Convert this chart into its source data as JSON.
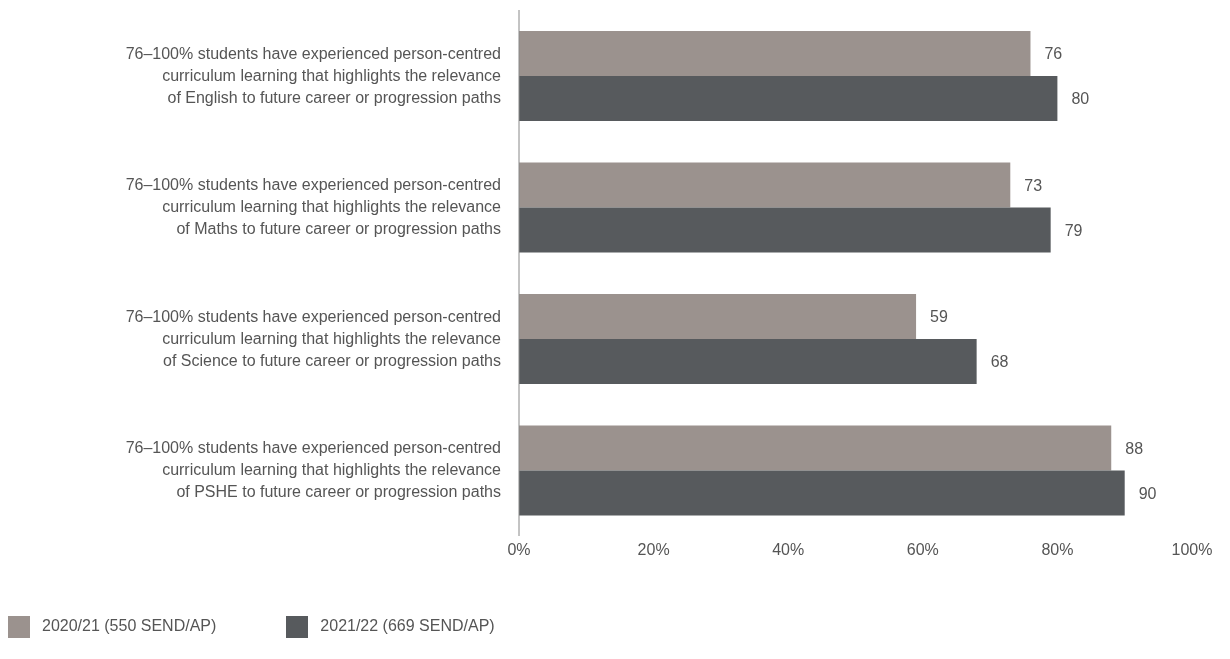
{
  "chart_data": {
    "type": "bar",
    "orientation": "horizontal",
    "categories": [
      "76–100% students have experienced person-centred\ncurriculum learning that highlights the relevance\nof English to future career or progression paths",
      "76–100% students have experienced person-centred\ncurriculum learning that highlights the relevance\nof Maths to future career or progression paths",
      "76–100% students have experienced person-centred\ncurriculum learning that highlights the relevance\nof Science to future career or progression paths",
      "76–100% students have experienced person-centred\ncurriculum learning that highlights the relevance\nof PSHE to future career or progression paths"
    ],
    "series": [
      {
        "name": "2020/21 (550 SEND/AP)",
        "color": "#9b928e",
        "values": [
          76,
          73,
          59,
          88
        ]
      },
      {
        "name": "2021/22 (669 SEND/AP)",
        "color": "#575a5d",
        "values": [
          80,
          79,
          68,
          90
        ]
      }
    ],
    "xlim": [
      0,
      100
    ],
    "xticks": [
      {
        "value": 0,
        "label": "0%"
      },
      {
        "value": 20,
        "label": "20%"
      },
      {
        "value": 40,
        "label": "40%"
      },
      {
        "value": 60,
        "label": "60%"
      },
      {
        "value": 80,
        "label": "80%"
      },
      {
        "value": 100,
        "label": "100%"
      }
    ],
    "data_labels": true,
    "grid": false,
    "legend": "bottom left"
  }
}
